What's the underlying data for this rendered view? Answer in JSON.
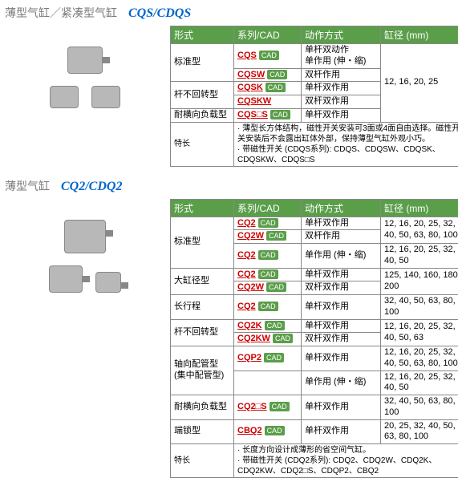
{
  "headers": {
    "form": "形式",
    "series": "系列/CAD",
    "action": "动作方式",
    "bore": "缸径 (mm)"
  },
  "cad": "CAD",
  "feature_label": "特长",
  "s1": {
    "title": "薄型气缸／紧凑型气缸",
    "code": "CQS/CDQS",
    "bore": "12, 16, 20, 25",
    "rows": [
      {
        "form": "标准型",
        "form_span": 2,
        "sub": [
          {
            "link": "CQS",
            "cad": 1,
            "action": "单杆双动作\n单作用 (伸・缩)"
          },
          {
            "link": "CQSW",
            "cad": 1,
            "action": "双杆作用"
          }
        ]
      },
      {
        "form": "杆不回转型",
        "form_span": 2,
        "sub": [
          {
            "link": "CQSK",
            "cad": 1,
            "action": "单杆双作用"
          },
          {
            "link": "CQSKW",
            "cad": 0,
            "action": "双杆双作用"
          }
        ]
      },
      {
        "form": "耐横向负载型",
        "form_span": 1,
        "sub": [
          {
            "link": "CQS□S",
            "cad": 1,
            "action": "单杆双作用"
          }
        ]
      }
    ],
    "features": "· 薄型长方体结构，磁性开关安装可3面或4面自由选择。磁性开关安装后不会露出缸体外部，保持薄型气缸外观小巧。\n· 带磁性开关 (CDQS系列): CDQS、CDQSW、CDQSK、CDQSKW、CDQS□S"
  },
  "s2": {
    "title": "薄型气缸",
    "code": "CQ2/CDQ2",
    "rows": [
      {
        "form": "标准型",
        "form_span": 3,
        "sub": [
          {
            "link": "CQ2",
            "cad": 1,
            "action": "单杆双作用",
            "bore": "12, 16, 20, 25, 32, 40, 50, 63, 80, 100"
          },
          {
            "link": "CQ2W",
            "cad": 1,
            "action": "双杆作用"
          },
          {
            "link": "CQ2",
            "cad": 1,
            "action": "单作用 (伸・缩)",
            "bore": "12, 16, 20, 25, 32, 40, 50"
          }
        ]
      },
      {
        "form": "大缸径型",
        "form_span": 2,
        "sub": [
          {
            "link": "CQ2",
            "cad": 1,
            "action": "单杆双作用",
            "bore": "125, 140, 160, 180, 200"
          },
          {
            "link": "CQ2W",
            "cad": 1,
            "action": "双杆双作用"
          }
        ]
      },
      {
        "form": "长行程",
        "form_span": 1,
        "sub": [
          {
            "link": "CQ2",
            "cad": 1,
            "action": "单杆双作用",
            "bore": "32, 40, 50, 63, 80, 100"
          }
        ]
      },
      {
        "form": "杆不回转型",
        "form_span": 2,
        "sub": [
          {
            "link": "CQ2K",
            "cad": 1,
            "action": "单杆双作用",
            "bore": "12, 16, 20, 25, 32, 40, 50, 63"
          },
          {
            "link": "CQ2KW",
            "cad": 1,
            "action": "双杆双作用"
          }
        ]
      },
      {
        "form": "轴向配管型\n(集中配管型)",
        "form_span": 2,
        "sub": [
          {
            "link": "CQP2",
            "cad": 1,
            "action": "单杆双作用",
            "bore": "12, 16, 20, 25, 32, 40, 50, 63, 80, 100"
          },
          {
            "link": "",
            "cad": 0,
            "noLink": 1,
            "action": "单作用 (伸・缩)",
            "bore": "12, 16, 20, 25, 32, 40, 50"
          }
        ]
      },
      {
        "form": "耐横向负载型",
        "form_span": 1,
        "sub": [
          {
            "link": "CQ2□S",
            "cad": 1,
            "action": "单杆双作用",
            "bore": "32, 40, 50, 63, 80, 100"
          }
        ]
      },
      {
        "form": "端锁型",
        "form_span": 1,
        "sub": [
          {
            "link": "CBQ2",
            "cad": 1,
            "action": "单杆双作用",
            "bore": "20, 25, 32, 40, 50, 63, 80, 100"
          }
        ]
      }
    ],
    "features": "· 长度方向设计成薄形的省空间气缸。\n· 带磁性开关 (CDQ2系列): CDQ2、CDQ2W、CDQ2K、CDQ2KW、CDQ2□S、CDQP2、CBQ2"
  }
}
